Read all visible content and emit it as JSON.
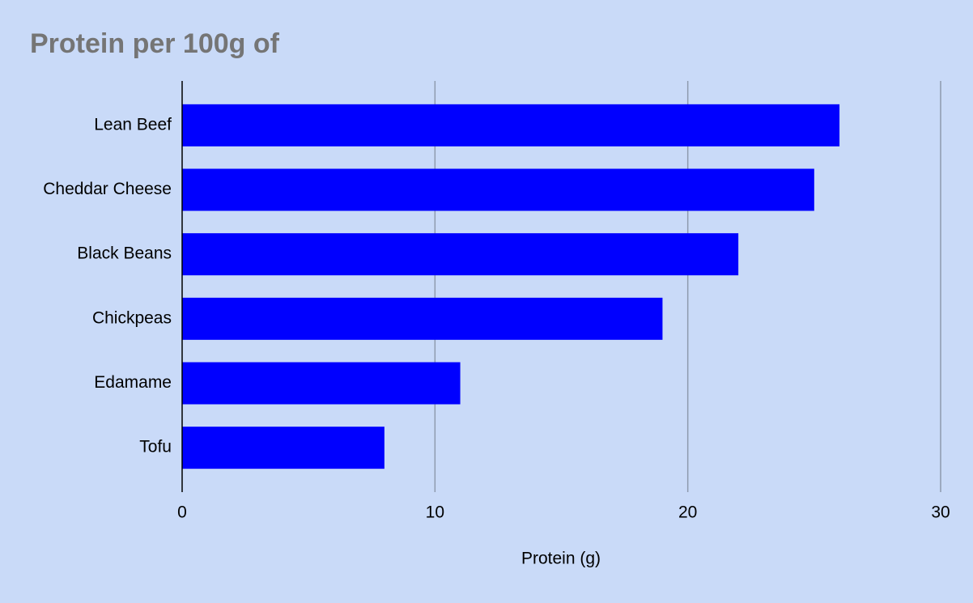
{
  "chart_data": {
    "type": "bar",
    "title": "Protein per 100g of",
    "categories": [
      "Lean Beef",
      "Cheddar Cheese",
      "Black Beans",
      "Chickpeas",
      "Edamame",
      "Tofu"
    ],
    "values": [
      26,
      25,
      22,
      19,
      11,
      8
    ],
    "color": "#0000ff",
    "xlabel": "Protein (g)",
    "xlim": [
      0,
      30
    ],
    "xticks": [
      0,
      10,
      20,
      30
    ],
    "grid": true
  }
}
